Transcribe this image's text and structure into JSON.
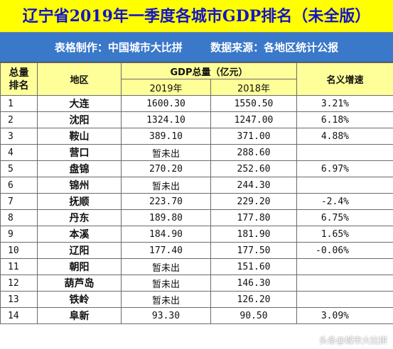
{
  "title": "辽宁省2019年一季度各城市GDP排名（未全版）",
  "subtitle": {
    "maker": "表格制作：中国城市大比拼",
    "source": "数据来源：各地区统计公报"
  },
  "headers": {
    "rank": "总量排名",
    "region": "地区",
    "gdp_total": "GDP总量（亿元）",
    "year_2019": "2019年",
    "year_2018": "2018年",
    "growth": "名义增速"
  },
  "rows": [
    {
      "rank": "1",
      "city": "大连",
      "gdp2019": "1600.30",
      "gdp2018": "1550.50",
      "growth": "3.21%"
    },
    {
      "rank": "2",
      "city": "沈阳",
      "gdp2019": "1324.10",
      "gdp2018": "1247.00",
      "growth": "6.18%"
    },
    {
      "rank": "3",
      "city": "鞍山",
      "gdp2019": "389.10",
      "gdp2018": "371.00",
      "growth": "4.88%"
    },
    {
      "rank": "4",
      "city": "营口",
      "gdp2019": "暂未出",
      "gdp2018": "288.60",
      "growth": ""
    },
    {
      "rank": "5",
      "city": "盘锦",
      "gdp2019": "270.20",
      "gdp2018": "252.60",
      "growth": "6.97%"
    },
    {
      "rank": "6",
      "city": "锦州",
      "gdp2019": "暂未出",
      "gdp2018": "244.30",
      "growth": ""
    },
    {
      "rank": "7",
      "city": "抚顺",
      "gdp2019": "223.70",
      "gdp2018": "229.20",
      "growth": "-2.4%"
    },
    {
      "rank": "8",
      "city": "丹东",
      "gdp2019": "189.80",
      "gdp2018": "177.80",
      "growth": "6.75%"
    },
    {
      "rank": "9",
      "city": "本溪",
      "gdp2019": "184.90",
      "gdp2018": "181.90",
      "growth": "1.65%"
    },
    {
      "rank": "10",
      "city": "辽阳",
      "gdp2019": "177.40",
      "gdp2018": "177.50",
      "growth": "-0.06%"
    },
    {
      "rank": "11",
      "city": "朝阳",
      "gdp2019": "暂未出",
      "gdp2018": "151.60",
      "growth": ""
    },
    {
      "rank": "12",
      "city": "葫芦岛",
      "gdp2019": "暂未出",
      "gdp2018": "146.30",
      "growth": ""
    },
    {
      "rank": "13",
      "city": "铁岭",
      "gdp2019": "暂未出",
      "gdp2018": "126.20",
      "growth": ""
    },
    {
      "rank": "14",
      "city": "阜新",
      "gdp2019": "93.30",
      "gdp2018": "90.50",
      "growth": "3.09%"
    }
  ],
  "watermark": "头条@城市大比拼",
  "colors": {
    "title_bg": "#ffff00",
    "title_text": "#1414c8",
    "subtitle_bg": "#3a78c9",
    "header_bg": "#ffff99"
  }
}
